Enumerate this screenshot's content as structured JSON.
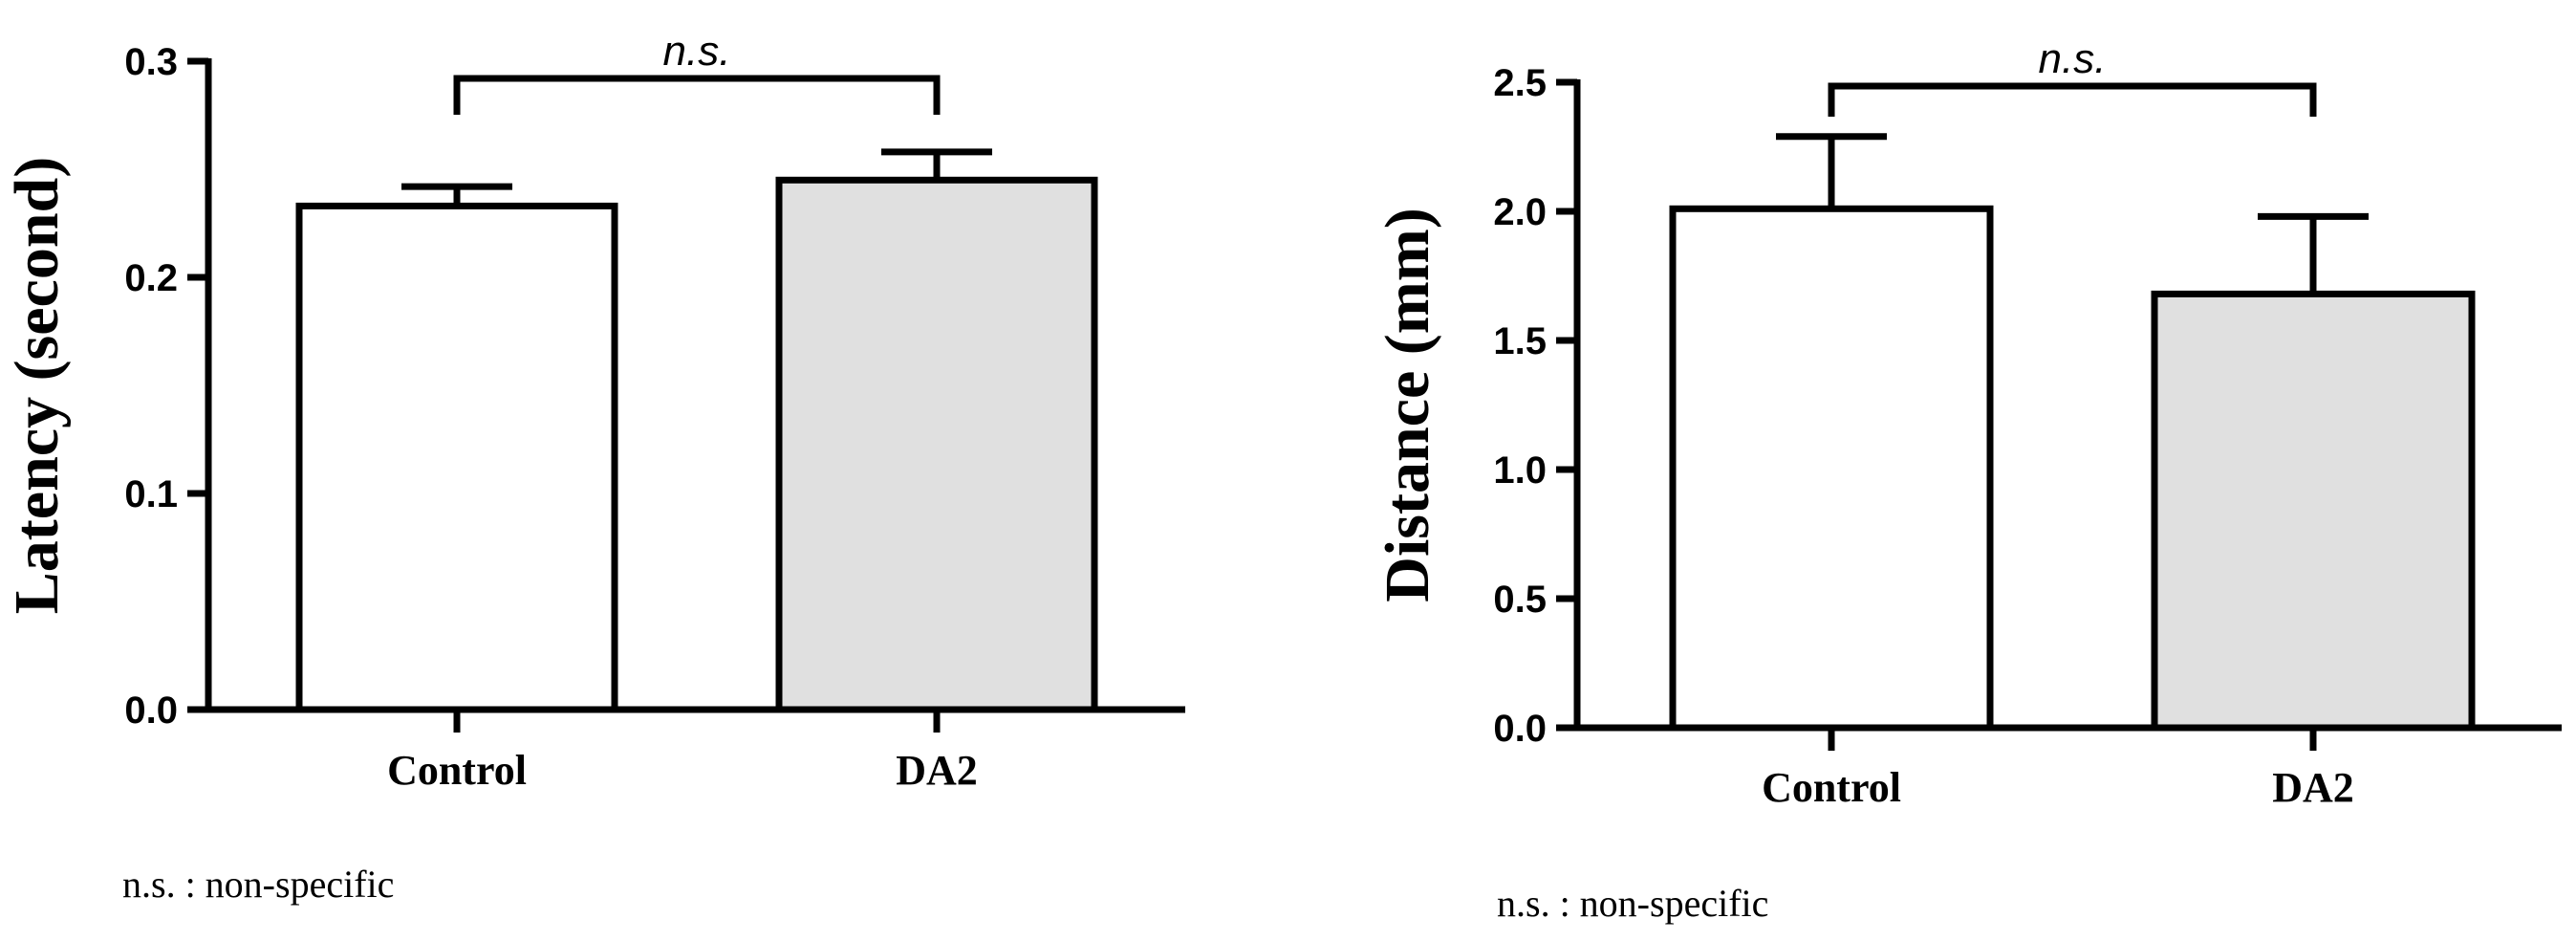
{
  "chart_data": [
    {
      "type": "bar",
      "categories": [
        "Control",
        "DA2"
      ],
      "values": [
        0.233,
        0.245
      ],
      "errors": [
        0.009,
        0.013
      ],
      "bar_colors": [
        "#ffffff",
        "#e0e0e0"
      ],
      "ylabel": "Latency (second)",
      "ylim": [
        0,
        0.3
      ],
      "yticks": [
        "0.0",
        "0.1",
        "0.2",
        "0.3"
      ],
      "significance": {
        "label": "n.s.",
        "between": [
          0,
          1
        ]
      },
      "footnote": "n.s. : non-specific",
      "grid": false
    },
    {
      "type": "bar",
      "categories": [
        "Control",
        "DA2"
      ],
      "values": [
        2.01,
        1.68
      ],
      "errors": [
        0.28,
        0.3
      ],
      "bar_colors": [
        "#ffffff",
        "#e0e0e0"
      ],
      "ylabel": "Distance (mm)",
      "ylim": [
        0,
        2.5
      ],
      "yticks": [
        "0.0",
        "0.5",
        "1.0",
        "1.5",
        "2.0",
        "2.5"
      ],
      "significance": {
        "label": "n.s.",
        "between": [
          0,
          1
        ]
      },
      "footnote": "n.s. : non-specific",
      "grid": false
    }
  ]
}
